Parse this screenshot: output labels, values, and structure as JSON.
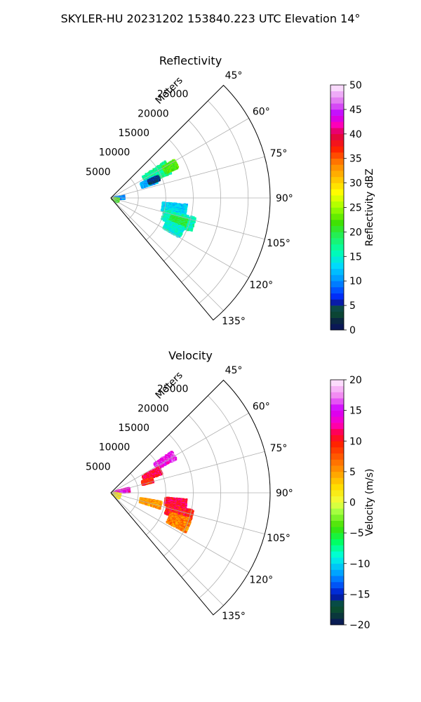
{
  "suptitle": "SKYLER-HU  20231202  153840.223 UTC Elevation 14°",
  "chart_data": [
    {
      "type": "polar-sector",
      "title": "Reflectivity",
      "radial_label": "Meters",
      "theta_range_deg": [
        45,
        140
      ],
      "theta_ticks": [
        "45°",
        "60°",
        "75°",
        "90°",
        "105°",
        "120°",
        "135°"
      ],
      "theta_tick_values": [
        45,
        60,
        75,
        90,
        105,
        120,
        135
      ],
      "r_range": [
        0,
        29000
      ],
      "r_ticks": [
        "5000",
        "10000",
        "15000",
        "20000",
        "25000"
      ],
      "r_tick_values": [
        5000,
        10000,
        15000,
        20000,
        25000
      ],
      "grid": true,
      "colorbar": {
        "label": "Reflectivity dBZ",
        "range": [
          0,
          50
        ],
        "ticks": [
          "0",
          "5",
          "10",
          "15",
          "20",
          "25",
          "30",
          "35",
          "40",
          "45",
          "50"
        ],
        "tick_values": [
          0,
          5,
          10,
          15,
          20,
          25,
          30,
          35,
          40,
          45,
          50
        ]
      },
      "echo_regions": [
        {
          "theta": [
            56,
            68
          ],
          "r": [
            7000,
            12000
          ],
          "value": 17
        },
        {
          "theta": [
            59,
            66
          ],
          "r": [
            11000,
            13500
          ],
          "value": 22
        },
        {
          "theta": [
            64,
            72
          ],
          "r": [
            6000,
            9000
          ],
          "value": 11
        },
        {
          "theta": [
            65,
            70
          ],
          "r": [
            7500,
            9500
          ],
          "value": 5
        },
        {
          "theta": [
            95,
            104
          ],
          "r": [
            9500,
            14000
          ],
          "value": 13
        },
        {
          "theta": [
            103,
            113
          ],
          "r": [
            10000,
            16000
          ],
          "value": 16
        },
        {
          "theta": [
            106,
            112
          ],
          "r": [
            11500,
            14500
          ],
          "value": 20
        },
        {
          "theta": [
            112,
            120
          ],
          "r": [
            11000,
            14500
          ],
          "value": 15
        },
        {
          "theta": [
            80,
            95
          ],
          "r": [
            500,
            2500
          ],
          "value": 10
        },
        {
          "theta": [
            95,
            120
          ],
          "r": [
            300,
            1500
          ],
          "value": 22
        }
      ]
    },
    {
      "type": "polar-sector",
      "title": "Velocity",
      "radial_label": "Meters",
      "theta_range_deg": [
        45,
        140
      ],
      "theta_ticks": [
        "45°",
        "60°",
        "75°",
        "90°",
        "105°",
        "120°",
        "135°"
      ],
      "theta_tick_values": [
        45,
        60,
        75,
        90,
        105,
        120,
        135
      ],
      "r_range": [
        0,
        29000
      ],
      "r_ticks": [
        "5000",
        "10000",
        "15000",
        "20000",
        "25000"
      ],
      "r_tick_values": [
        5000,
        10000,
        15000,
        20000,
        25000
      ],
      "grid": true,
      "colorbar": {
        "label": "Velocity (m/s)",
        "range": [
          -20,
          20
        ],
        "ticks": [
          "−20",
          "−15",
          "−10",
          "−5",
          "0",
          "5",
          "10",
          "15",
          "20"
        ],
        "tick_values": [
          -20,
          -15,
          -10,
          -5,
          0,
          5,
          10,
          15,
          20
        ]
      },
      "echo_regions": [
        {
          "theta": [
            56,
            63
          ],
          "r": [
            9500,
            13500
          ],
          "value": 15
        },
        {
          "theta": [
            62,
            70
          ],
          "r": [
            6500,
            10000
          ],
          "value": 11
        },
        {
          "theta": [
            70,
            76
          ],
          "r": [
            6000,
            8000
          ],
          "value": 9
        },
        {
          "theta": [
            95,
            103
          ],
          "r": [
            10000,
            14000
          ],
          "value": 11
        },
        {
          "theta": [
            102,
            111
          ],
          "r": [
            10500,
            15500
          ],
          "value": 10
        },
        {
          "theta": [
            108,
            118
          ],
          "r": [
            11500,
            15500
          ],
          "value": 6
        },
        {
          "theta": [
            100,
            108
          ],
          "r": [
            5500,
            9500
          ],
          "value": 5
        },
        {
          "theta": [
            75,
            88
          ],
          "r": [
            500,
            3500
          ],
          "value": 14
        },
        {
          "theta": [
            95,
            125
          ],
          "r": [
            300,
            1800
          ],
          "value": 2
        }
      ]
    }
  ]
}
